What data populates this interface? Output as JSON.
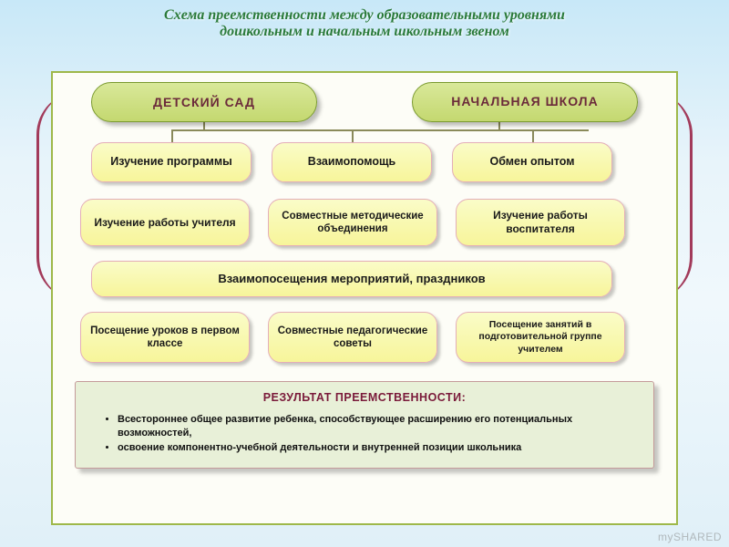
{
  "title": {
    "line1": "Схема преемственности между образовательными уровнями",
    "line2": "дошкольным  и начальным школьным звеном",
    "color": "#2a7a3a",
    "fontsize": 16
  },
  "panel": {
    "background": "#fdfdf7",
    "border_color": "#9eb84a"
  },
  "style": {
    "pill_fill": "#d9e89a",
    "pill_border": "#7a9a30",
    "pill_text": "#6b2a3a",
    "box_fill": "#f7f59a",
    "box_border": "#e4aeb8",
    "box_text": "#1a1a1a",
    "connector_color": "#8a8a5a",
    "arc_color": "#a23a5a"
  },
  "top_nodes": {
    "left": "ДЕТСКИЙ  САД",
    "right": "НАЧАЛЬНАЯ ШКОЛА"
  },
  "row1": {
    "c1": "Изучение программы",
    "c2": "Взаимопомощь",
    "c3": "Обмен опытом"
  },
  "row2": {
    "c1": "Изучение работы учителя",
    "c2": "Совместные методические объединения",
    "c3": "Изучение работы воспитателя"
  },
  "row3": {
    "wide": "Взаимопосещения мероприятий, праздников"
  },
  "row4": {
    "c1": "Посещение уроков в первом классе",
    "c2": "Совместные педагогические советы",
    "c3": "Посещение занятий в подготовительной группе учителем"
  },
  "result": {
    "title": "РЕЗУЛЬТАТ ПРЕЕМСТВЕННОСТИ:",
    "title_color": "#7a1a3a",
    "background": "#e8f0d8",
    "border_color": "#c49a9a",
    "bullets": [
      "Всестороннее общее развитие ребенка, способствующее расширению его потенциальных возможностей,",
      "освоение компонентно-учебной деятельности и внутренней позиции школьника"
    ]
  },
  "watermark": "mySHARED"
}
